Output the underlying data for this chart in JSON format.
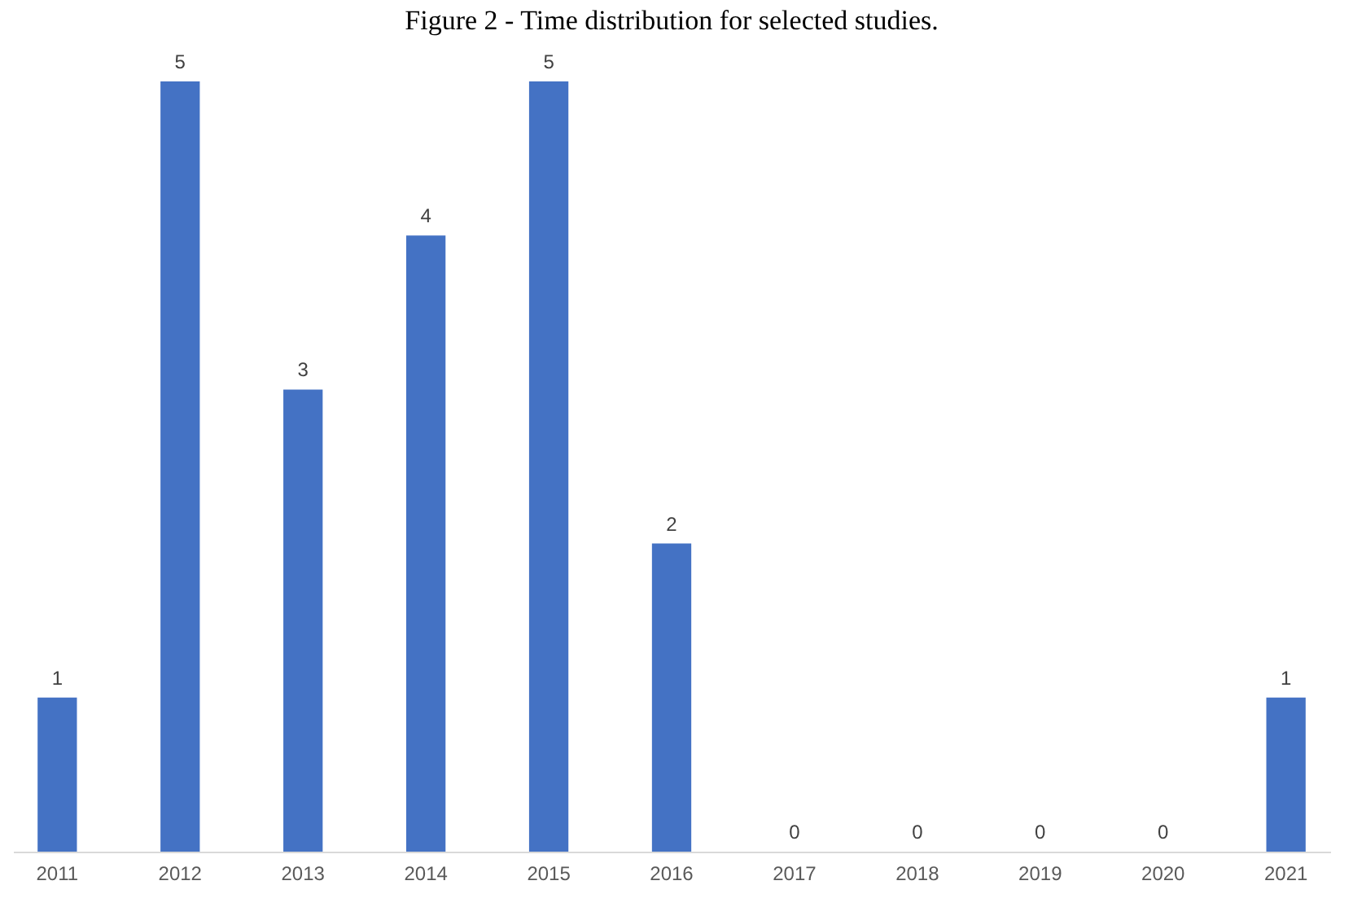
{
  "chart_data": {
    "type": "bar",
    "title": "Figure 2 - Time distribution for selected studies.",
    "categories": [
      "2011",
      "2012",
      "2013",
      "2014",
      "2015",
      "2016",
      "2017",
      "2018",
      "2019",
      "2020",
      "2021"
    ],
    "values": [
      1,
      5,
      3,
      4,
      5,
      2,
      0,
      0,
      0,
      0,
      1
    ],
    "color": "#4472c4",
    "data_labels": true,
    "tick_labels": "x"
  }
}
